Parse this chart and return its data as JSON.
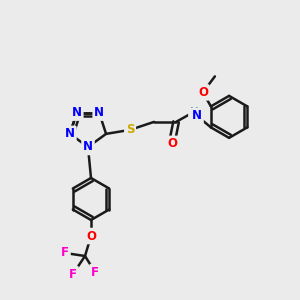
{
  "background_color": "#EBEBEB",
  "bond_color": "#1a1a1a",
  "bond_width": 1.8,
  "atom_colors": {
    "N": "#0000FF",
    "O": "#FF0000",
    "S": "#CCAA00",
    "F": "#FF00CC",
    "C": "#1a1a1a",
    "H": "#2E8B8B"
  },
  "font_size": 8.5,
  "fig_width": 3.0,
  "fig_height": 3.0,
  "dpi": 100
}
